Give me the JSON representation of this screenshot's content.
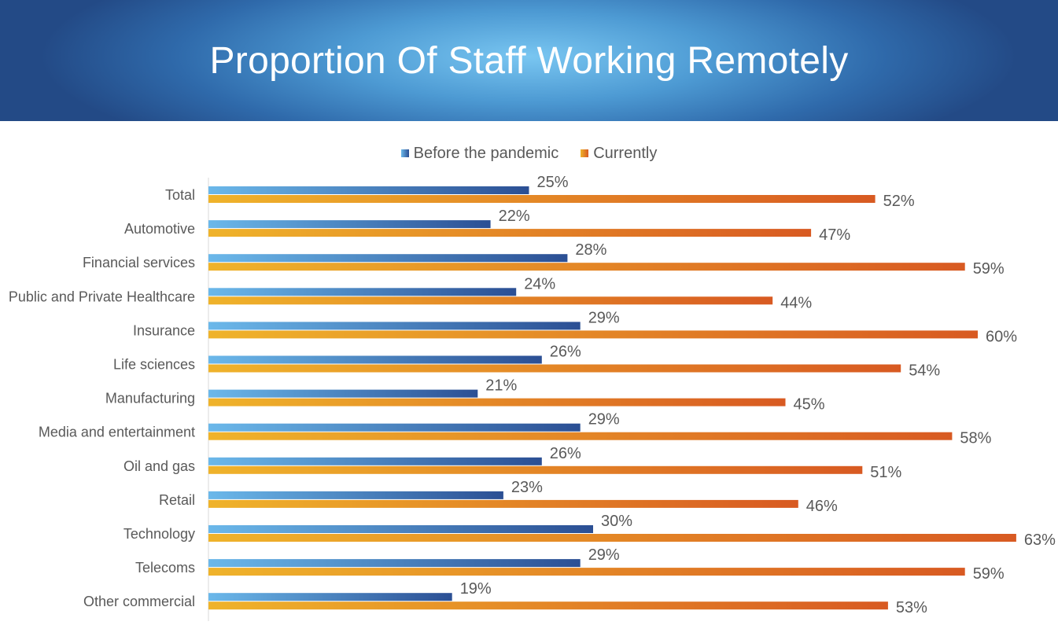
{
  "colors": {
    "before_start": "#6BB8EA",
    "before_end": "#2B4F94",
    "current_start": "#EFB32B",
    "current_end": "#D85A22"
  },
  "chart_data": {
    "type": "bar",
    "orientation": "horizontal",
    "title": "Proportion Of Staff Working Remotely",
    "legend_position": "top",
    "grid": false,
    "xlim": [
      0,
      63
    ],
    "categories": [
      "Total",
      "Automotive",
      "Financial services",
      "Public and Private Healthcare",
      "Insurance",
      "Life sciences",
      "Manufacturing",
      "Media and entertainment",
      "Oil and gas",
      "Retail",
      "Technology",
      "Telecoms",
      "Other commercial"
    ],
    "series": [
      {
        "name": "Before the pandemic",
        "values": [
          25,
          22,
          28,
          24,
          29,
          26,
          21,
          29,
          26,
          23,
          30,
          29,
          19
        ]
      },
      {
        "name": "Currently",
        "values": [
          52,
          47,
          59,
          44,
          60,
          54,
          45,
          58,
          51,
          46,
          63,
          59,
          53
        ]
      }
    ],
    "value_suffix": "%"
  }
}
